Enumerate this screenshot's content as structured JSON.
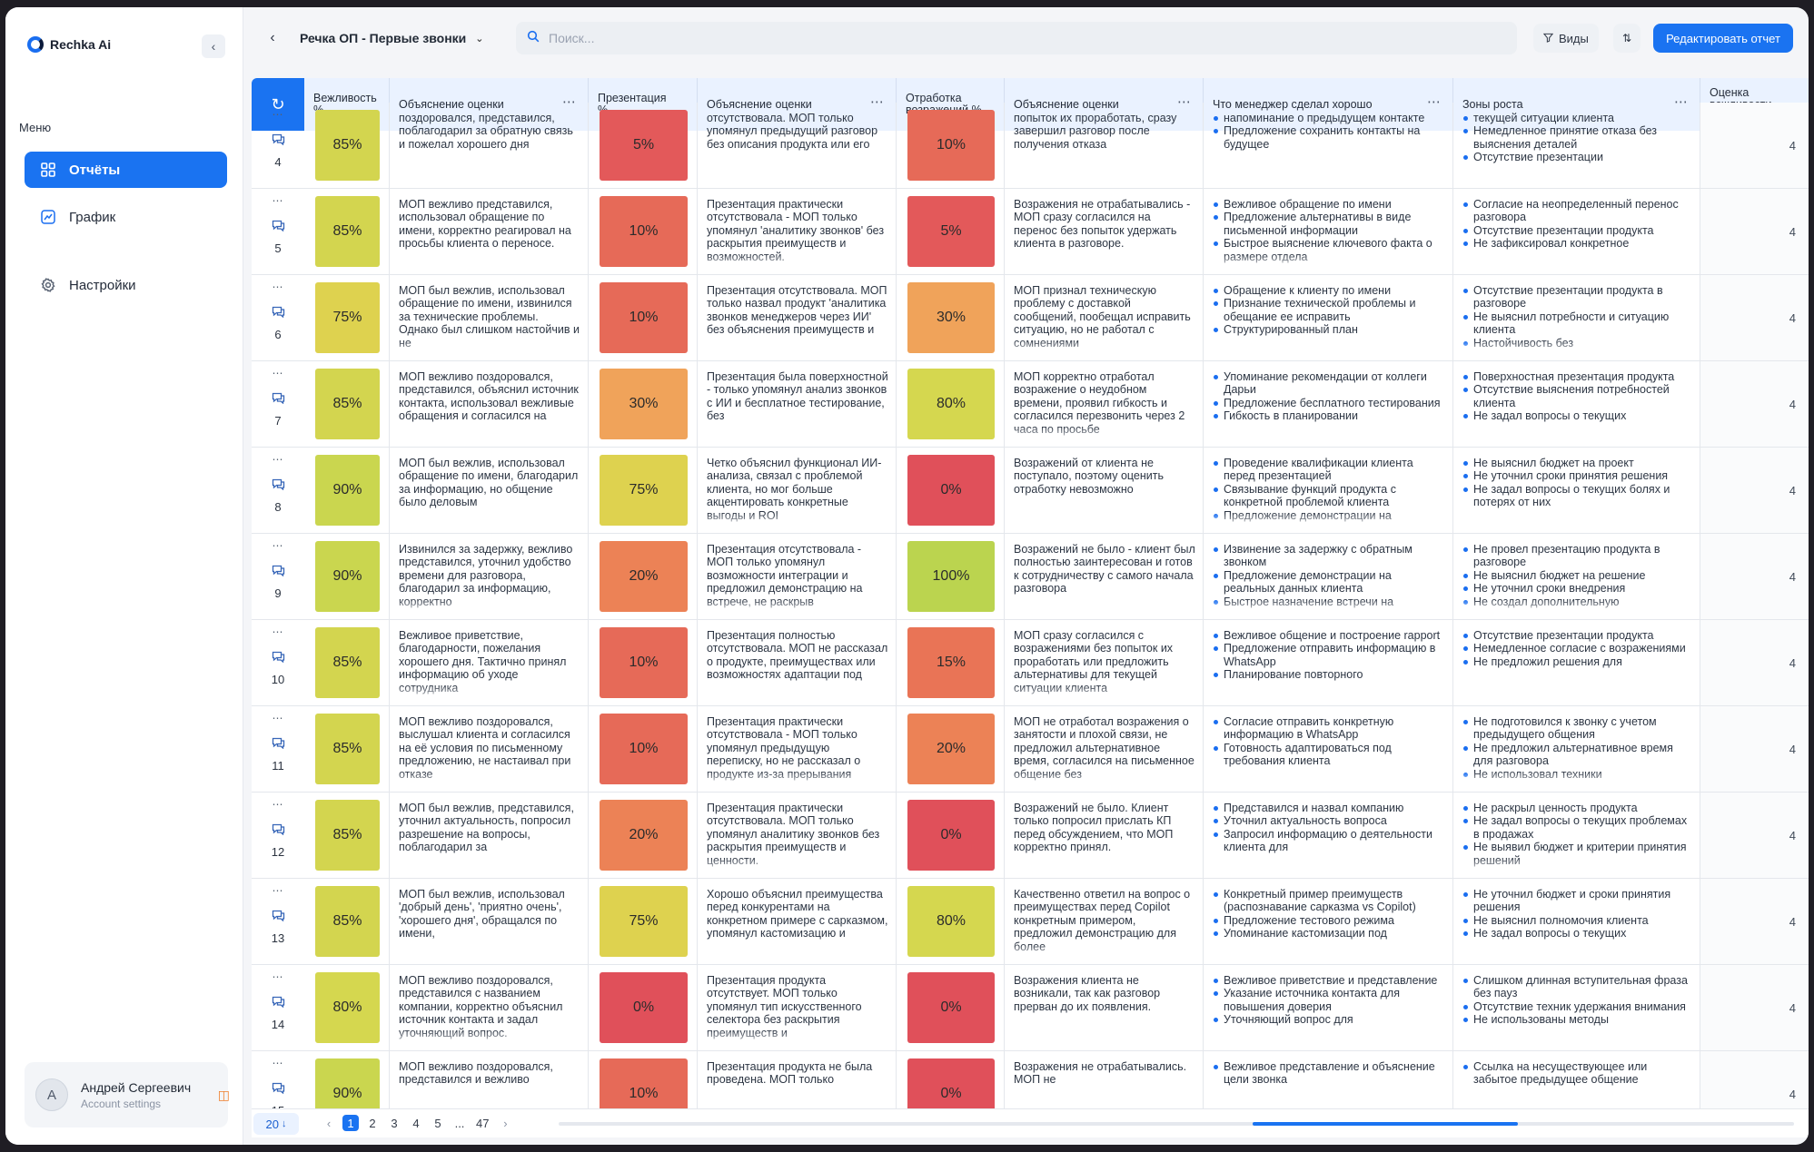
{
  "app": {
    "name": "Rechka Ai"
  },
  "sidebar": {
    "menu_label": "Меню",
    "items": [
      {
        "label": "Отчёты",
        "icon": "grid-icon",
        "active": true
      },
      {
        "label": "График",
        "icon": "chart-icon",
        "active": false
      },
      {
        "label": "Настройки",
        "icon": "gear-icon",
        "active": false
      }
    ],
    "user": {
      "initial": "A",
      "name": "Андрей Сергеевич",
      "subtitle": "Account settings"
    }
  },
  "topbar": {
    "report_title": "Речка ОП - Первые звонки",
    "search_placeholder": "Поиск...",
    "views_label": "Виды",
    "edit_label": "Редактировать отчет"
  },
  "table": {
    "columns": [
      "Вежливость %",
      "Объяснение оценки",
      "Презентация %",
      "Объяснение оценки",
      "Отработка возражений %",
      "Объяснение оценки",
      "Что менеджер сделал хорошо",
      "Зоны роста",
      "Оценка вежливости интереса"
    ],
    "rows": [
      {
        "num": "4",
        "politeness": "85%",
        "politeness_color": "#d3d54f",
        "politeness_expl": "поздоровался, представился, поблагодарил за обратную связь и пожелал хорошего дня",
        "presentation": "5%",
        "presentation_color": "#e3595a",
        "presentation_expl": "отсутствовала. МОП только упомянул предыдущий разговор без описания продукта или его",
        "objections": "10%",
        "objections_color": "#e66a58",
        "objections_expl": "попыток их проработать, сразу завершил разговор после получения отказа",
        "good": [
          "напоминание о предыдущем контакте",
          "Предложение сохранить контакты на будущее"
        ],
        "growth": [
          "текущей ситуации клиента",
          "Немедленное принятие отказа без выяснения деталей",
          "Отсутствие презентации"
        ],
        "score": "4"
      },
      {
        "num": "5",
        "politeness": "85%",
        "politeness_color": "#d3d54f",
        "politeness_expl": "МОП вежливо представился, использовал обращение по имени, корректно реагировал на просьбы клиента о переносе.",
        "presentation": "10%",
        "presentation_color": "#e66a58",
        "presentation_expl": "Презентация практически отсутствовала - МОП только упомянул 'аналитику звонков' без раскрытия преимуществ и возможностей.",
        "objections": "5%",
        "objections_color": "#e3595a",
        "objections_expl": "Возражения не отрабатывались - МОП сразу согласился на перенос без попыток удержать клиента в разговоре.",
        "good": [
          "Вежливое обращение по имени",
          "Предложение альтернативы в виде письменной информации",
          "Быстрое выяснение ключевого факта о размере отдела"
        ],
        "growth": [
          "Согласие на неопределенный перенос разговора",
          "Отсутствие презентации продукта",
          "Не зафиксировал конкретное"
        ],
        "score": "4"
      },
      {
        "num": "6",
        "politeness": "75%",
        "politeness_color": "#ded24f",
        "politeness_expl": "МОП был вежлив, использовал обращение по имени, извинился за технические проблемы. Однако был слишком настойчив и не",
        "presentation": "10%",
        "presentation_color": "#e66a58",
        "presentation_expl": "Презентация отсутствовала. МОП только назвал продукт 'аналитика звонков менеджеров через ИИ' без объяснения преимуществ и",
        "objections": "30%",
        "objections_color": "#f0a35a",
        "objections_expl": "МОП признал техническую проблему с доставкой сообщений, пообещал исправить ситуацию, но не работал с сомнениями",
        "good": [
          "Обращение к клиенту по имени",
          "Признание технической проблемы и обещание ее исправить",
          "Структурированный план"
        ],
        "growth": [
          "Отсутствие презентации продукта в разговоре",
          "Не выяснил потребности и ситуацию клиента",
          "Настойчивость без"
        ],
        "score": "4"
      },
      {
        "num": "7",
        "politeness": "85%",
        "politeness_color": "#d3d54f",
        "politeness_expl": "МОП вежливо поздоровался, представился, объяснил источник контакта, использовал вежливые обращения и согласился на",
        "presentation": "30%",
        "presentation_color": "#f0a35a",
        "presentation_expl": "Презентация была поверхностной - только упомянул анализ звонков с ИИ и бесплатное тестирование, без",
        "objections": "80%",
        "objections_color": "#d5d74f",
        "objections_expl": "МОП корректно отработал возражение о неудобном времени, проявил гибкость и согласился перезвонить через 2 часа по просьбе",
        "good": [
          "Упоминание рекомендации от коллеги Дарьи",
          "Предложение бесплатного тестирования",
          "Гибкость в планировании"
        ],
        "growth": [
          "Поверхностная презентация продукта",
          "Отсутствие выяснения потребностей клиента",
          "Не задал вопросы о текущих"
        ],
        "score": "4"
      },
      {
        "num": "8",
        "politeness": "90%",
        "politeness_color": "#cad64f",
        "politeness_expl": "МОП был вежлив, использовал обращение по имени, благодарил за информацию, но общение было деловым",
        "presentation": "75%",
        "presentation_color": "#ded24f",
        "presentation_expl": "Четко объяснил функционал ИИ-анализа, связал с проблемой клиента, но мог больше акцентировать конкретные выгоды и ROI",
        "objections": "0%",
        "objections_color": "#e0505a",
        "objections_expl": "Возражений от клиента не поступало, поэтому оценить отработку невозможно",
        "good": [
          "Проведение квалификации клиента перед презентацией",
          "Связывание функций продукта с конкретной проблемой клиента",
          "Предложение демонстрации на"
        ],
        "growth": [
          "Не выяснил бюджет на проект",
          "Не уточнил сроки принятия решения",
          "Не задал вопросы о текущих болях и потерях от них"
        ],
        "score": "4"
      },
      {
        "num": "9",
        "politeness": "90%",
        "politeness_color": "#cad64f",
        "politeness_expl": "Извинился за задержку, вежливо представился, уточнил удобство времени для разговора, благодарил за информацию, корректно",
        "presentation": "20%",
        "presentation_color": "#ec8256",
        "presentation_expl": "Презентация отсутствовала - МОП только упомянул возможности интеграции и предложил демонстрацию на встрече, не раскрыв",
        "objections": "100%",
        "objections_color": "#bbd44f",
        "objections_expl": "Возражений не было - клиент был полностью заинтересован и готов к сотрудничеству с самого начала разговора",
        "good": [
          "Извинение за задержку с обратным звонком",
          "Предложение демонстрации на реальных данных клиента",
          "Быстрое назначение встречи на"
        ],
        "growth": [
          "Не провел презентацию продукта в разговоре",
          "Не выяснил бюджет на решение",
          "Не уточнил сроки внедрения",
          "Не создал дополнительную"
        ],
        "score": "4"
      },
      {
        "num": "10",
        "politeness": "85%",
        "politeness_color": "#d3d54f",
        "politeness_expl": "Вежливое приветствие, благодарности, пожелания хорошего дня. Тактично принял информацию об уходе сотрудника",
        "presentation": "10%",
        "presentation_color": "#e66a58",
        "presentation_expl": "Презентация полностью отсутствовала. МОП не рассказал о продукте, преимуществах или возможностях адаптации под",
        "objections": "15%",
        "objections_color": "#e97456",
        "objections_expl": "МОП сразу согласился с возражениями без попыток их проработать или предложить альтернативы для текущей ситуации клиента",
        "good": [
          "Вежливое общение и построение rapport",
          "Предложение отправить информацию в WhatsApp",
          "Планирование повторного"
        ],
        "growth": [
          "Отсутствие презентации продукта",
          "Немедленное согласие с возражениями",
          "Не предложил решения для"
        ],
        "score": "4"
      },
      {
        "num": "11",
        "politeness": "85%",
        "politeness_color": "#d3d54f",
        "politeness_expl": "МОП вежливо поздоровался, выслушал клиента и согласился на её условия по письменному предложению, не настаивал при отказе",
        "presentation": "10%",
        "presentation_color": "#e66a58",
        "presentation_expl": "Презентация практически отсутствовала - МОП только упомянул предыдущую переписку, но не рассказал о продукте из-за прерывания",
        "objections": "20%",
        "objections_color": "#ec8256",
        "objections_expl": "МОП не отработал возражения о занятости и плохой связи, не предложил альтернативное время, согласился на письменное общение без",
        "good": [
          "Согласие отправить конкретную информацию в WhatsApp",
          "Готовность адаптироваться под требования клиента"
        ],
        "growth": [
          "Не подготовился к звонку с учетом предыдущего общения",
          "Не предложил альтернативное время для разговора",
          "Не использовал техники"
        ],
        "score": "4"
      },
      {
        "num": "12",
        "politeness": "85%",
        "politeness_color": "#d3d54f",
        "politeness_expl": "МОП был вежлив, представился, уточнил актуальность, попросил разрешение на вопросы, поблагодарил за",
        "presentation": "20%",
        "presentation_color": "#ec8256",
        "presentation_expl": "Презентация практически отсутствовала. МОП только упомянул аналитику звонков без раскрытия преимуществ и ценности.",
        "objections": "0%",
        "objections_color": "#e0505a",
        "objections_expl": "Возражений не было. Клиент только попросил прислать КП перед обсуждением, что МОП корректно принял.",
        "good": [
          "Представился и назвал компанию",
          "Уточнил актуальность вопроса",
          "Запросил информацию о деятельности клиента для"
        ],
        "growth": [
          "Не раскрыл ценность продукта",
          "Не задал вопросы о текущих проблемах в продажах",
          "Не выявил бюджет и критерии принятия решений"
        ],
        "score": "4"
      },
      {
        "num": "13",
        "politeness": "85%",
        "politeness_color": "#d3d54f",
        "politeness_expl": "МОП был вежлив, использовал 'добрый день', 'приятно очень', 'хорошего дня', обращался по имени,",
        "presentation": "75%",
        "presentation_color": "#ded24f",
        "presentation_expl": "Хорошо объяснил преимущества перед конкурентами на конкретном примере с сарказмом, упомянул кастомизацию и",
        "objections": "80%",
        "objections_color": "#d5d74f",
        "objections_expl": "Качественно ответил на вопрос о преимуществах перед Copilot конкретным примером, предложил демонстрацию для более",
        "good": [
          "Конкретный пример преимуществ (распознавание сарказма vs Copilot)",
          "Предложение тестового режима",
          "Упоминание кастомизации под"
        ],
        "growth": [
          "Не уточнил бюджет и сроки принятия решения",
          "Не выяснил полномочия клиента",
          "Не задал вопросы о текущих"
        ],
        "score": "4"
      },
      {
        "num": "14",
        "politeness": "80%",
        "politeness_color": "#d5d74f",
        "politeness_expl": "МОП вежливо поздоровался, представился с названием компании, корректно объяснил источник контакта и задал уточняющий вопрос.",
        "presentation": "0%",
        "presentation_color": "#e0505a",
        "presentation_expl": "Презентация продукта отсутствует. МОП только упомянул тип искусственного селектора без раскрытия преимуществ и",
        "objections": "0%",
        "objections_color": "#e0505a",
        "objections_expl": "Возражения клиента не возникали, так как разговор прерван до их появления.",
        "good": [
          "Вежливое приветствие и представление",
          "Указание источника контакта для повышения доверия",
          "Уточняющий вопрос для"
        ],
        "growth": [
          "Слишком длинная вступительная фраза без пауз",
          "Отсутствие техник удержания внимания",
          "Не использованы методы"
        ],
        "score": "4"
      },
      {
        "num": "15",
        "politeness": "90%",
        "politeness_color": "#cad64f",
        "politeness_expl": "МОП вежливо поздоровался, представился и вежливо",
        "presentation": "10%",
        "presentation_color": "#e66a58",
        "presentation_expl": "Презентация продукта не была проведена. МОП только",
        "objections": "0%",
        "objections_color": "#e0505a",
        "objections_expl": "Возражения не отрабатывались. МОП не",
        "good": [
          "Вежливое представление и объяснение цели звонка"
        ],
        "growth": [
          "Ссылка на несуществующее или забытое предыдущее общение"
        ],
        "score": "4"
      }
    ]
  },
  "footer": {
    "page_size": "20",
    "pages": [
      "1",
      "2",
      "3",
      "4",
      "5",
      "...",
      "47"
    ],
    "active_page": "1"
  },
  "colors": {
    "accent": "#1a73f1",
    "header_bg": "#eaf2ff"
  }
}
